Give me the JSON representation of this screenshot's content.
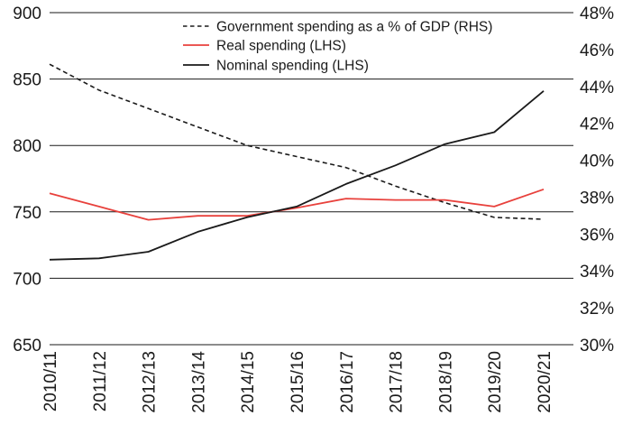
{
  "chart_data": {
    "type": "line",
    "title": "",
    "xlabel": "",
    "ylabel_left": "",
    "ylabel_right": "",
    "categories": [
      "2010/11",
      "2011/12",
      "2012/13",
      "2013/14",
      "2014/15",
      "2015/16",
      "2016/17",
      "2017/18",
      "2018/19",
      "2019/20",
      "2020/21"
    ],
    "ylim_left": [
      650,
      900
    ],
    "yticks_left": [
      "650",
      "700",
      "750",
      "800",
      "850",
      "900"
    ],
    "ylim_right": [
      30,
      48
    ],
    "yticks_right": [
      "30%",
      "32%",
      "34%",
      "36%",
      "38%",
      "40%",
      "42%",
      "44%",
      "46%",
      "48%"
    ],
    "grid": "horizontal",
    "legend_position": "top-right",
    "series": [
      {
        "name": "Government spending as a % of GDP (RHS)",
        "axis": "right",
        "style": "dashed",
        "color": "#1a1a1a",
        "values": [
          45.2,
          43.8,
          42.8,
          41.8,
          40.8,
          40.2,
          39.6,
          38.6,
          37.7,
          36.9,
          36.8
        ]
      },
      {
        "name": "Real spending (LHS)",
        "axis": "left",
        "style": "solid",
        "color": "#e8413c",
        "values": [
          764,
          754,
          744,
          747,
          747,
          753,
          760,
          759,
          759,
          754,
          767
        ]
      },
      {
        "name": "Nominal spending (LHS)",
        "axis": "left",
        "style": "solid",
        "color": "#1a1a1a",
        "values": [
          714,
          715,
          720,
          735,
          746,
          754,
          771,
          785,
          801,
          810,
          841
        ]
      }
    ]
  }
}
